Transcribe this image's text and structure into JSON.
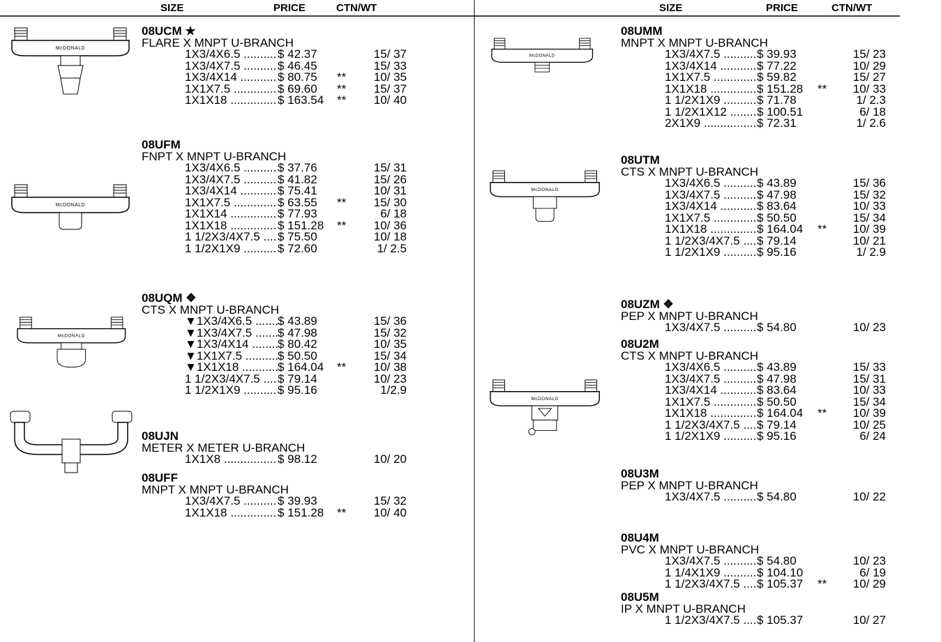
{
  "brand": "McDONALD",
  "columns": [
    {
      "headers": [
        "SIZE",
        "PRICE",
        "CTN/WT"
      ],
      "products": [
        {
          "code": "08UCM ★",
          "description": "FLARE X MNPT U-BRANCH",
          "rows": [
            {
              "size": "1X3/4X6.5",
              "price": "$ 42.37",
              "ctn": "15/ 37"
            },
            {
              "size": "1X3/4X7.5",
              "price": "$ 46.45",
              "ctn": "15/ 33"
            },
            {
              "size": "1X3/4X14",
              "price": "$ 80.75",
              "note": "**",
              "ctn": "10/ 35"
            },
            {
              "size": "1X1X7.5",
              "price": "$ 69.60",
              "note": "**",
              "ctn": "15/ 37"
            },
            {
              "size": "1X1X18",
              "price": "$ 163.54",
              "note": "**",
              "ctn": "10/ 40"
            }
          ]
        },
        {
          "code": "08UFM",
          "description": "FNPT X MNPT U-BRANCH",
          "rows": [
            {
              "size": "1X3/4X6.5",
              "price": "$ 37.76",
              "ctn": "15/ 31"
            },
            {
              "size": "1X3/4X7.5",
              "price": "$ 41.82",
              "ctn": "15/ 26"
            },
            {
              "size": "1X3/4X14",
              "price": "$ 75.41",
              "ctn": "10/ 31"
            },
            {
              "size": "1X1X7.5",
              "price": "$ 63.55",
              "note": "**",
              "ctn": "15/ 30"
            },
            {
              "size": "1X1X14",
              "price": "$ 77.93",
              "ctn": "6/ 18"
            },
            {
              "size": "1X1X18",
              "price": "$ 151.28",
              "note": "**",
              "ctn": "10/ 36"
            },
            {
              "size": "1 1/2X3/4X7.5",
              "price": "$ 75.50",
              "ctn": "10/ 18"
            },
            {
              "size": "1 1/2X1X9",
              "price": "$ 72.60",
              "ctn": "1/ 2.5"
            }
          ]
        },
        {
          "code": "08UQM ❖",
          "description": "CTS X MNPT U-BRANCH",
          "rows": [
            {
              "size": "▼1X3/4X6.5",
              "price": "$ 43.89",
              "ctn": "15/ 36"
            },
            {
              "size": "▼1X3/4X7.5",
              "price": "$ 47.98",
              "ctn": "15/ 32"
            },
            {
              "size": "▼1X3/4X14",
              "price": "$ 80.42",
              "ctn": "10/ 35"
            },
            {
              "size": "▼1X1X7.5",
              "price": "$ 50.50",
              "ctn": "15/ 34"
            },
            {
              "size": "▼1X1X18",
              "price": "$ 164.04",
              "note": "**",
              "ctn": "10/ 38"
            },
            {
              "size": "1 1/2X3/4X7.5",
              "price": "$ 79.14",
              "ctn": "10/ 23"
            },
            {
              "size": "1 1/2X1X9",
              "price": "$ 95.16",
              "ctn": "1/2.9"
            }
          ]
        },
        {
          "code": "08UJN",
          "description": "METER X METER U-BRANCH",
          "rows": [
            {
              "size": "1X1X8",
              "price": "$ 98.12",
              "ctn": "10/ 20"
            }
          ]
        },
        {
          "code": "08UFF",
          "description": "MNPT X MNPT U-BRANCH",
          "rows": [
            {
              "size": "1X3/4X7.5",
              "price": "$ 39.93",
              "ctn": "15/ 32"
            },
            {
              "size": "1X1X18",
              "price": "$ 151.28",
              "note": "**",
              "ctn": "10/ 40"
            }
          ]
        }
      ]
    },
    {
      "headers": [
        "SIZE",
        "PRICE",
        "CTN/WT"
      ],
      "products": [
        {
          "code": "08UMM",
          "description": "MNPT X MNPT U-BRANCH",
          "rows": [
            {
              "size": "1X3/4X7.5",
              "price": "$ 39.93",
              "ctn": "15/ 23"
            },
            {
              "size": "1X3/4X14",
              "price": "$ 77.22",
              "ctn": "10/ 29"
            },
            {
              "size": "1X1X7.5",
              "price": "$ 59.82",
              "ctn": "15/ 27"
            },
            {
              "size": "1X1X18",
              "price": "$ 151.28",
              "note": "**",
              "ctn": "10/ 33"
            },
            {
              "size": "1 1/2X1X9",
              "price": "$ 71.78",
              "ctn": "1/ 2.3"
            },
            {
              "size": "1 1/2X1X12",
              "price": "$ 100.51",
              "ctn": "6/ 18"
            },
            {
              "size": "2X1X9",
              "price": "$ 72.31",
              "ctn": "1/ 2.6"
            }
          ]
        },
        {
          "code": "08UTM",
          "description": "CTS X MNPT U-BRANCH",
          "rows": [
            {
              "size": "1X3/4X6.5",
              "price": "$ 43.89",
              "ctn": "15/ 36"
            },
            {
              "size": "1X3/4X7.5",
              "price": "$ 47.98",
              "ctn": "15/ 32"
            },
            {
              "size": "1X3/4X14",
              "price": "$ 83.64",
              "ctn": "10/ 33"
            },
            {
              "size": "1X1X7.5",
              "price": "$ 50.50",
              "ctn": "15/ 34"
            },
            {
              "size": "1X1X18",
              "price": "$ 164.04",
              "note": "**",
              "ctn": "10/ 39"
            },
            {
              "size": "1 1/2X3/4X7.5",
              "price": "$ 79.14",
              "ctn": "10/ 21"
            },
            {
              "size": "1 1/2X1X9",
              "price": "$ 95.16",
              "ctn": "1/ 2.9"
            }
          ]
        },
        {
          "code": "08UZM ❖",
          "description": "PEP X MNPT U-BRANCH",
          "rows": [
            {
              "size": "1X3/4X7.5",
              "price": "$ 54.80",
              "ctn": "10/ 23"
            }
          ]
        },
        {
          "code": "08U2M",
          "description": "CTS X MNPT U-BRANCH",
          "rows": [
            {
              "size": "1X3/4X6.5",
              "price": "$ 43.89",
              "ctn": "15/ 33"
            },
            {
              "size": "1X3/4X7.5",
              "price": "$ 47.98",
              "ctn": "15/ 31"
            },
            {
              "size": "1X3/4X14",
              "price": "$ 83.64",
              "ctn": "10/ 33"
            },
            {
              "size": "1X1X7.5",
              "price": "$ 50.50",
              "ctn": "15/ 34"
            },
            {
              "size": "1X1X18",
              "price": "$ 164.04",
              "note": "**",
              "ctn": "10/ 39"
            },
            {
              "size": "1 1/2X3/4X7.5",
              "price": "$ 79.14",
              "ctn": "10/ 25"
            },
            {
              "size": "1 1/2X1X9",
              "price": "$ 95.16",
              "ctn": "6/ 24"
            }
          ]
        },
        {
          "code": "08U3M",
          "description": "PEP X MNPT U-BRANCH",
          "rows": [
            {
              "size": "1X3/4X7.5",
              "price": "$ 54.80",
              "ctn": "10/ 22"
            }
          ]
        },
        {
          "code": "08U4M",
          "description": "PVC X MNPT U-BRANCH",
          "rows": [
            {
              "size": "1X3/4X7.5",
              "price": "$ 54.80",
              "ctn": "10/ 23"
            },
            {
              "size": "1 1/4X1X9",
              "price": "$ 104.10",
              "ctn": "6/ 19"
            },
            {
              "size": "1 1/2X3/4X7.5",
              "price": "$ 105.37",
              "note": "**",
              "ctn": "10/ 29"
            }
          ]
        },
        {
          "code": "08U5M",
          "description": "IP X MNPT U-BRANCH",
          "rows": [
            {
              "size": "1 1/2X3/4X7.5",
              "price": "$ 105.37",
              "ctn": "10/ 27"
            }
          ]
        }
      ]
    }
  ]
}
